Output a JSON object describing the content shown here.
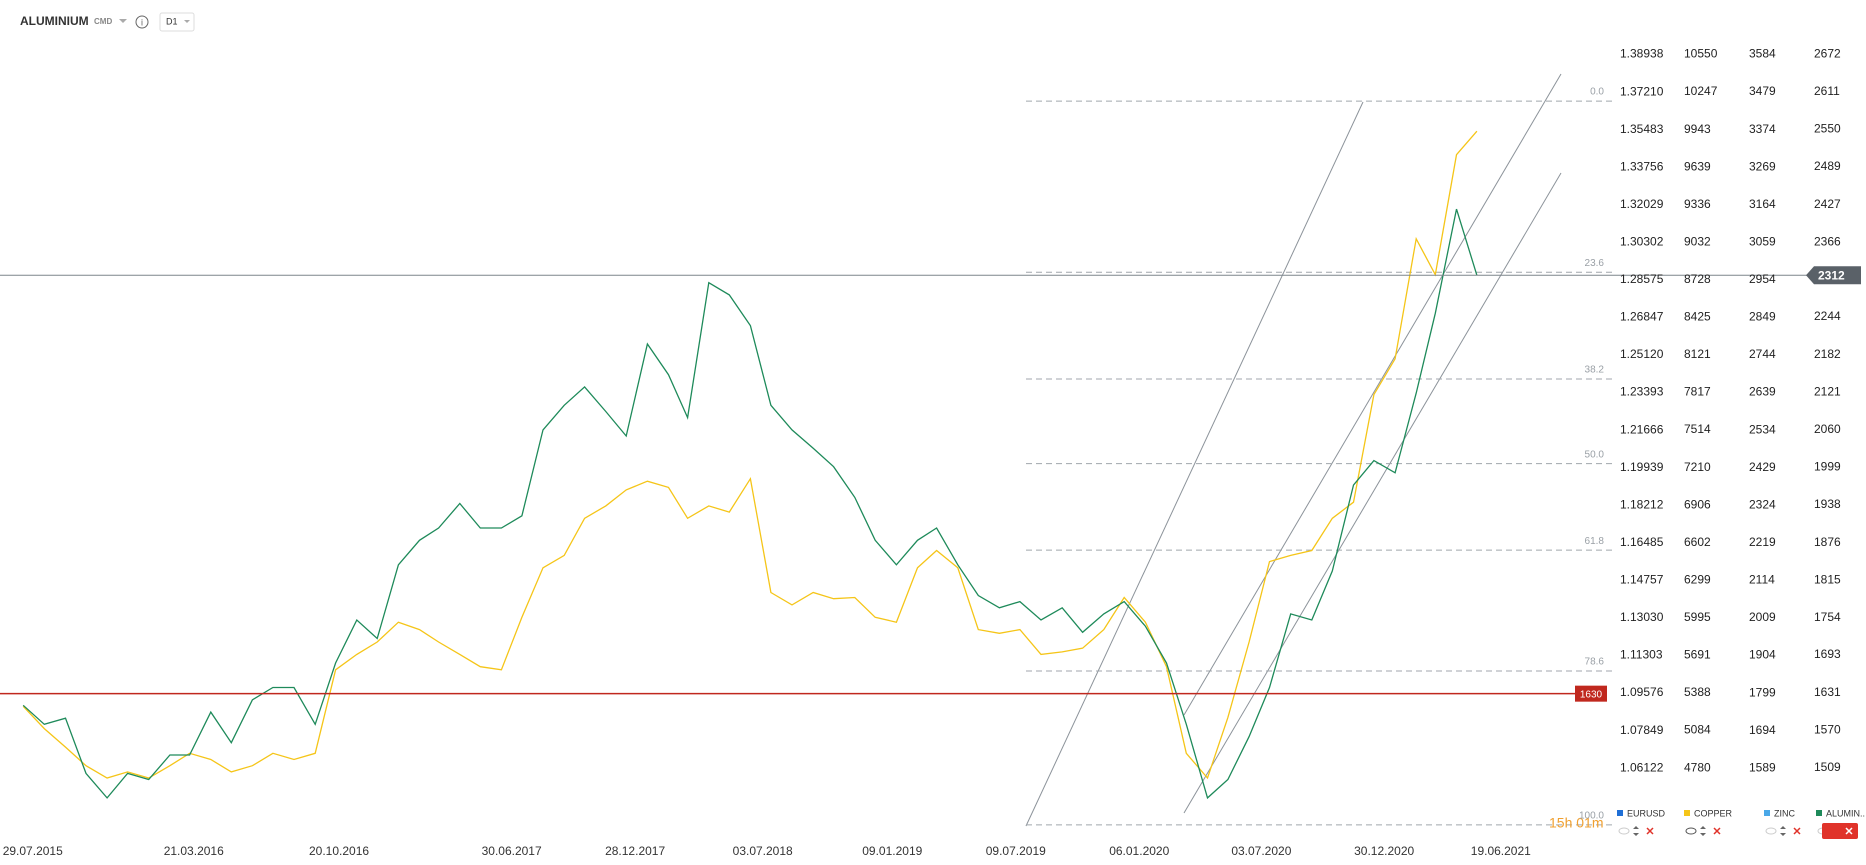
{
  "header": {
    "symbol": "ALUMINIUM",
    "kind": "CMD",
    "interval": "D1"
  },
  "countdown": "15h 01m",
  "chart_data": {
    "type": "line",
    "grid": false,
    "x": [
      "15.07.2015",
      "15.08.2015",
      "15.09.2015",
      "15.10.2015",
      "15.11.2015",
      "15.12.2015",
      "15.01.2016",
      "15.02.2016",
      "15.03.2016",
      "15.04.2016",
      "15.05.2016",
      "15.06.2016",
      "15.07.2016",
      "15.08.2016",
      "15.09.2016",
      "15.10.2016",
      "15.11.2016",
      "15.12.2016",
      "15.01.2017",
      "15.02.2017",
      "15.03.2017",
      "15.04.2017",
      "15.05.2017",
      "15.06.2017",
      "15.07.2017",
      "15.08.2017",
      "15.09.2017",
      "15.10.2017",
      "15.11.2017",
      "15.12.2017",
      "15.01.2018",
      "15.02.2018",
      "15.03.2018",
      "15.04.2018",
      "15.05.2018",
      "15.06.2018",
      "15.07.2018",
      "15.08.2018",
      "15.09.2018",
      "15.10.2018",
      "15.11.2018",
      "15.12.2018",
      "15.01.2019",
      "15.02.2019",
      "15.03.2019",
      "15.04.2019",
      "15.05.2019",
      "15.06.2019",
      "15.07.2019",
      "15.08.2019",
      "15.09.2019",
      "15.10.2019",
      "15.11.2019",
      "15.12.2019",
      "15.01.2020",
      "15.02.2020",
      "15.03.2020",
      "15.04.2020",
      "15.05.2020",
      "15.06.2020",
      "15.07.2020",
      "15.08.2020",
      "15.09.2020",
      "15.10.2020",
      "15.11.2020",
      "15.12.2020",
      "15.01.2021",
      "15.02.2021",
      "15.03.2021",
      "15.04.2021",
      "15.05.2021"
    ],
    "xlim": [
      "11.06.2015",
      "29.11.2021"
    ],
    "xticks": [
      "29.07.2015",
      "21.03.2016",
      "20.10.2016",
      "30.06.2017",
      "28.12.2017",
      "03.07.2018",
      "09.01.2019",
      "09.07.2019",
      "06.01.2020",
      "03.07.2020",
      "30.12.2020",
      "19.06.2021"
    ],
    "series": [
      {
        "name": "ALUMIN..",
        "color": "#1e8a5a",
        "axis": "y",
        "values": [
          1611,
          1580,
          1590,
          1500,
          1460,
          1500,
          1490,
          1530,
          1530,
          1600,
          1550,
          1620,
          1640,
          1640,
          1580,
          1680,
          1750,
          1720,
          1840,
          1880,
          1900,
          1940,
          1900,
          1900,
          1920,
          2060,
          2100,
          2130,
          2090,
          2050,
          2200,
          2150,
          2080,
          2300,
          2280,
          2230,
          2100,
          2060,
          2030,
          2000,
          1950,
          1880,
          1840,
          1880,
          1900,
          1840,
          1790,
          1770,
          1780,
          1750,
          1770,
          1730,
          1760,
          1780,
          1740,
          1680,
          1580,
          1460,
          1490,
          1560,
          1640,
          1760,
          1750,
          1830,
          1970,
          2010,
          1990,
          2120,
          2250,
          2420,
          2312
        ]
      },
      {
        "name": "COPPER",
        "color": "#f5c518",
        "axis": "y2",
        "values": [
          5280,
          5100,
          4950,
          4800,
          4700,
          4750,
          4700,
          4800,
          4900,
          4850,
          4750,
          4800,
          4900,
          4850,
          4900,
          5575,
          5700,
          5800,
          5960,
          5900,
          5800,
          5700,
          5600,
          5575,
          6000,
          6400,
          6500,
          6800,
          6900,
          7030,
          7100,
          7050,
          6800,
          6900,
          6850,
          7120,
          6200,
          6100,
          6200,
          6150,
          6160,
          6000,
          5960,
          6400,
          6540,
          6400,
          5900,
          5870,
          5900,
          5700,
          5720,
          5750,
          5900,
          6160,
          5960,
          5600,
          4900,
          4700,
          5190,
          5800,
          6450,
          6500,
          6540,
          6800,
          6930,
          7800,
          8090,
          9060,
          8770,
          9740,
          9930
        ]
      }
    ],
    "hidden_series": [
      {
        "name": "EURUSD",
        "color": "#1f6fd6"
      },
      {
        "name": "ZINC",
        "color": "#4aa8e8"
      }
    ],
    "ylim": [
      1411,
      2707
    ],
    "yticks": [
      2672,
      2611,
      2550,
      2489,
      2427,
      2366,
      2244,
      2182,
      2121,
      2060,
      1999,
      1938,
      1876,
      1815,
      1754,
      1693,
      1631,
      1570,
      1509
    ],
    "y2lim": [
      4296,
      10724
    ],
    "y2ticks": [
      10550,
      10247,
      9943,
      9639,
      9336,
      9032,
      8728,
      8425,
      8121,
      7817,
      7514,
      7210,
      6906,
      6602,
      6299,
      5995,
      5691,
      5388,
      5084,
      4780
    ],
    "y3lim": [
      1.03369,
      1.39929
    ],
    "y3ticks": [
      1.38938,
      {
        "value": 1.3721,
        "label": "1.37210"
      },
      1.35483,
      1.33756,
      1.32029,
      1.30302,
      1.28575,
      1.26847,
      {
        "value": 1.2512,
        "label": "1.25120"
      },
      1.23393,
      1.21666,
      1.19939,
      1.18212,
      1.16485,
      1.14757,
      {
        "value": 1.1303,
        "label": "1.13030"
      },
      1.11303,
      1.09576,
      1.07849,
      1.06122
    ],
    "y4lim": [
      1422,
      3644
    ],
    "y4ticks": [
      3584,
      3479,
      3374,
      3269,
      3164,
      3059,
      2954,
      2849,
      2744,
      2639,
      2534,
      2429,
      2324,
      2219,
      2114,
      2009,
      1904,
      1799,
      1694,
      1589
    ],
    "hlines": [
      {
        "value": 1630,
        "color": "#c0281e"
      },
      {
        "value": 2312,
        "color": "#7d858c"
      }
    ],
    "fib_levels": [
      {
        "value": 2596,
        "label": "0.0"
      },
      {
        "value": 2317,
        "label": "23.6"
      },
      {
        "value": 2143,
        "label": "38.2"
      },
      {
        "value": 2005,
        "label": "50.0"
      },
      {
        "value": 1864,
        "label": "61.8"
      },
      {
        "value": 1667,
        "label": "78.6"
      },
      {
        "value": 1416,
        "label": "100.0"
      }
    ]
  }
}
